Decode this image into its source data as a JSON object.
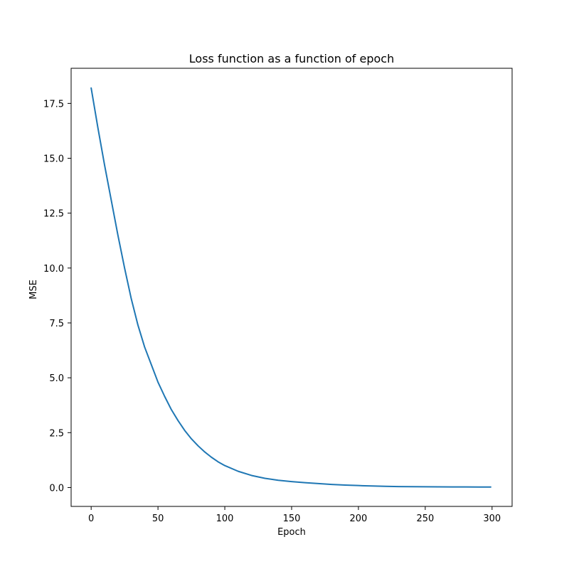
{
  "chart_data": {
    "type": "line",
    "title": "Loss function as a function of epoch",
    "xlabel": "Epoch",
    "ylabel": "MSE",
    "xlim": [
      -15,
      315
    ],
    "ylim": [
      -0.86,
      19.1
    ],
    "xticks": [
      0,
      50,
      100,
      150,
      200,
      250,
      300
    ],
    "xtick_labels": [
      "0",
      "50",
      "100",
      "150",
      "200",
      "250",
      "300"
    ],
    "yticks": [
      0.0,
      2.5,
      5.0,
      7.5,
      10.0,
      12.5,
      15.0,
      17.5
    ],
    "ytick_labels": [
      "0.0",
      "2.5",
      "5.0",
      "7.5",
      "10.0",
      "12.5",
      "15.0",
      "17.5"
    ],
    "grid": false,
    "line_color": "#1f77b4",
    "series": [
      {
        "x": [
          0,
          5,
          10,
          15,
          20,
          25,
          30,
          35,
          40,
          45,
          50,
          55,
          60,
          65,
          70,
          75,
          80,
          85,
          90,
          95,
          100,
          110,
          120,
          130,
          140,
          150,
          160,
          170,
          180,
          190,
          200,
          210,
          220,
          230,
          240,
          250,
          260,
          270,
          280,
          290,
          299
        ],
        "y": [
          18.2,
          16.4,
          14.7,
          13.1,
          11.5,
          10.0,
          8.6,
          7.4,
          6.4,
          5.6,
          4.8,
          4.15,
          3.55,
          3.05,
          2.6,
          2.22,
          1.9,
          1.62,
          1.38,
          1.17,
          1.0,
          0.74,
          0.55,
          0.42,
          0.33,
          0.27,
          0.22,
          0.18,
          0.14,
          0.11,
          0.09,
          0.07,
          0.055,
          0.045,
          0.04,
          0.035,
          0.03,
          0.028,
          0.026,
          0.024,
          0.022
        ]
      }
    ]
  }
}
